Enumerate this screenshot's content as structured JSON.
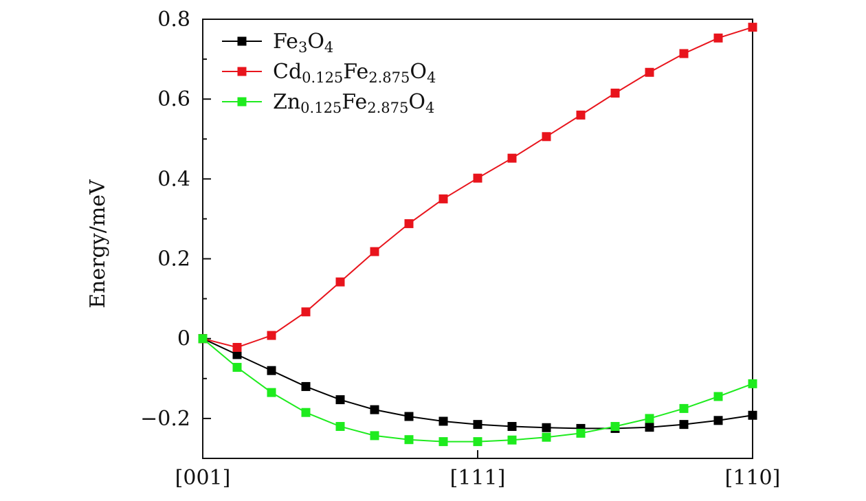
{
  "chart_data": {
    "type": "line",
    "title": "",
    "xlabel": "",
    "ylabel": "Energy/meV",
    "ylim": [
      -0.3,
      0.8
    ],
    "x_tick_labels": [
      "[001]",
      "[111]",
      "[110]"
    ],
    "x_tick_positions": [
      0,
      8,
      16
    ],
    "y_tick_labels": [
      "−0.2",
      "0",
      "0.2",
      "0.4",
      "0.6",
      "0.8"
    ],
    "y_tick_values": [
      -0.2,
      0,
      0.2,
      0.4,
      0.6,
      0.8
    ],
    "grid": false,
    "legend_position": "top-left",
    "x": [
      0,
      1,
      2,
      3,
      4,
      5,
      6,
      7,
      8,
      9,
      10,
      11,
      12,
      13,
      14,
      15,
      16
    ],
    "series": [
      {
        "name": "Fe3O4",
        "legend_parts": [
          [
            "Fe",
            false
          ],
          [
            "3",
            true
          ],
          [
            "O",
            false
          ],
          [
            "4",
            true
          ]
        ],
        "color": "#000000",
        "values": [
          0,
          -0.04,
          -0.08,
          -0.12,
          -0.153,
          -0.178,
          -0.195,
          -0.207,
          -0.215,
          -0.22,
          -0.223,
          -0.225,
          -0.225,
          -0.222,
          -0.215,
          -0.205,
          -0.192
        ]
      },
      {
        "name": "Cd0.125Fe2.875O4",
        "legend_parts": [
          [
            "Cd",
            false
          ],
          [
            "0.125",
            true
          ],
          [
            "Fe",
            false
          ],
          [
            "2.875",
            true
          ],
          [
            "O",
            false
          ],
          [
            "4",
            true
          ]
        ],
        "color": "#e8141c",
        "values": [
          0,
          -0.022,
          0.008,
          0.067,
          0.142,
          0.218,
          0.288,
          0.35,
          0.402,
          0.452,
          0.506,
          0.56,
          0.615,
          0.667,
          0.714,
          0.753,
          0.78
        ]
      },
      {
        "name": "Zn0.125Fe2.875O4",
        "legend_parts": [
          [
            "Zn",
            false
          ],
          [
            "0.125",
            true
          ],
          [
            "Fe",
            false
          ],
          [
            "2.875",
            true
          ],
          [
            "O",
            false
          ],
          [
            "4",
            true
          ]
        ],
        "color": "#1eeb1e",
        "values": [
          0,
          -0.072,
          -0.135,
          -0.185,
          -0.22,
          -0.243,
          -0.253,
          -0.258,
          -0.258,
          -0.254,
          -0.247,
          -0.237,
          -0.22,
          -0.2,
          -0.175,
          -0.145,
          -0.113
        ]
      }
    ]
  }
}
